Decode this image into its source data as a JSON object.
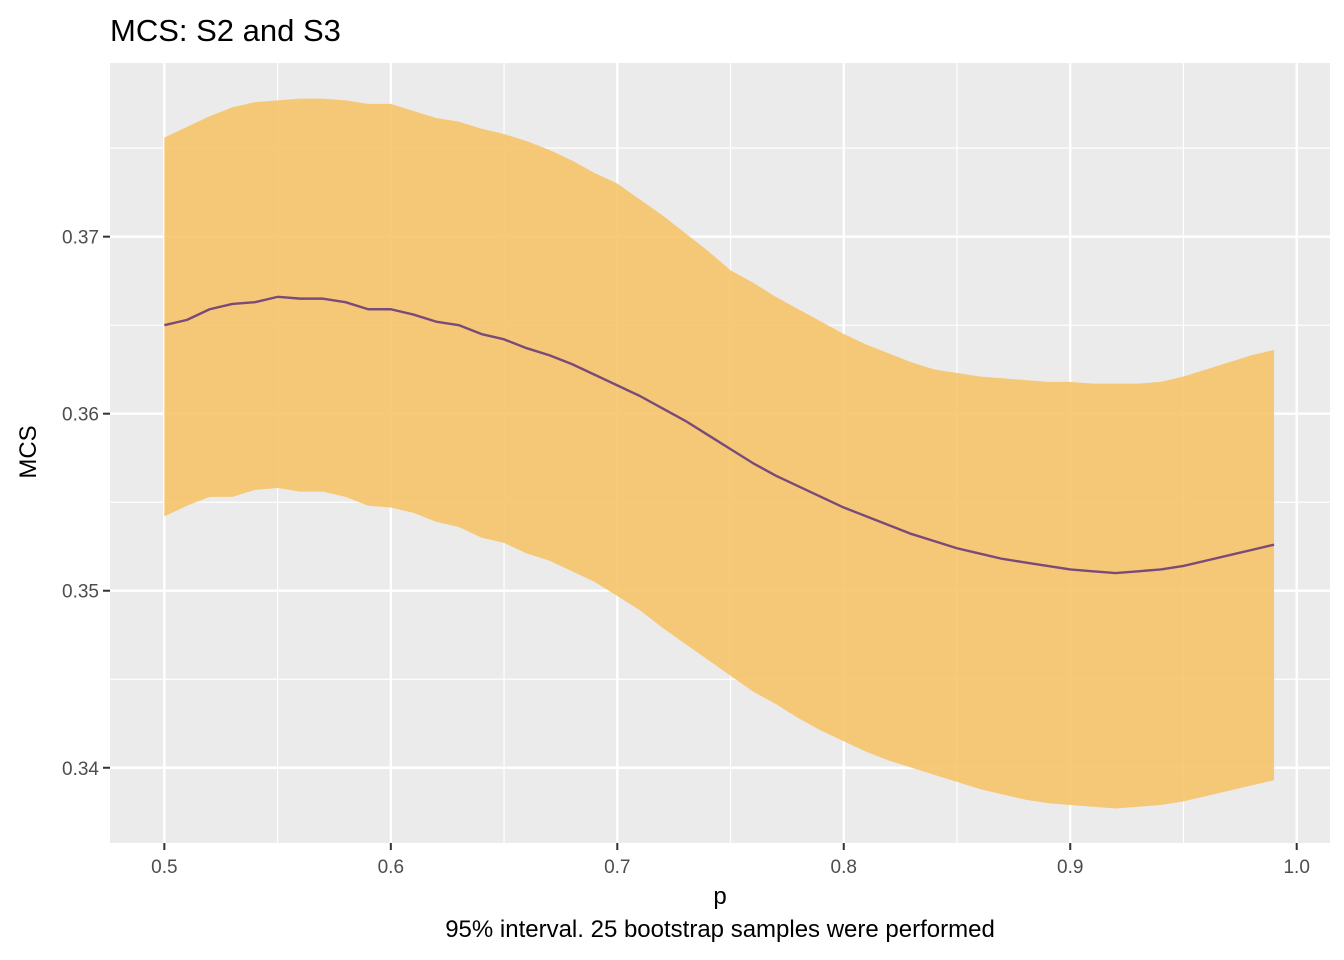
{
  "chart_data": {
    "type": "line",
    "title": "MCS: S2 and S3",
    "xlabel": "p",
    "ylabel": "MCS",
    "caption": "95% interval. 25 bootstrap samples were performed",
    "xlim": [
      0.476,
      1.0147
    ],
    "ylim": [
      0.33575,
      0.37981
    ],
    "x_ticks": [
      0.5,
      0.6,
      0.7,
      0.8,
      0.9,
      1.0
    ],
    "x_tick_labels": [
      "0.5",
      "0.6",
      "0.7",
      "0.8",
      "0.9",
      "1.0"
    ],
    "y_ticks": [
      0.34,
      0.35,
      0.36,
      0.37
    ],
    "y_tick_labels": [
      "0.34",
      "0.35",
      "0.36",
      "0.37"
    ],
    "grid": true,
    "legend": "none",
    "colors": {
      "panel": "#ebebeb",
      "grid": "#ffffff",
      "ribbon": "#f6c46a",
      "line": "#7a4a78"
    },
    "x": [
      0.5,
      0.51,
      0.52,
      0.53,
      0.54,
      0.55,
      0.56,
      0.57,
      0.58,
      0.59,
      0.6,
      0.61,
      0.62,
      0.63,
      0.64,
      0.65,
      0.66,
      0.67,
      0.68,
      0.69,
      0.7,
      0.71,
      0.72,
      0.73,
      0.74,
      0.75,
      0.76,
      0.77,
      0.78,
      0.79,
      0.8,
      0.81,
      0.82,
      0.83,
      0.84,
      0.85,
      0.86,
      0.87,
      0.88,
      0.89,
      0.9,
      0.91,
      0.92,
      0.93,
      0.94,
      0.95,
      0.96,
      0.97,
      0.98,
      0.99
    ],
    "series": [
      {
        "values": [
          0.365,
          0.3653,
          0.3659,
          0.3662,
          0.3663,
          0.3666,
          0.3665,
          0.3665,
          0.3663,
          0.3659,
          0.3659,
          0.3656,
          0.3652,
          0.365,
          0.3645,
          0.3642,
          0.3637,
          0.3633,
          0.3628,
          0.3622,
          0.3616,
          0.361,
          0.3603,
          0.3596,
          0.3588,
          0.358,
          0.3572,
          0.3565,
          0.3559,
          0.3553,
          0.3547,
          0.3542,
          0.3537,
          0.3532,
          0.3528,
          0.3524,
          0.3521,
          0.3518,
          0.3516,
          0.3514,
          0.3512,
          0.3511,
          0.351,
          0.3511,
          0.3512,
          0.3514,
          0.3517,
          0.352,
          0.3523,
          0.3526
        ],
        "lower": [
          0.3542,
          0.3548,
          0.3553,
          0.3553,
          0.3557,
          0.3558,
          0.3556,
          0.3556,
          0.3553,
          0.3548,
          0.3547,
          0.3544,
          0.3539,
          0.3536,
          0.353,
          0.3527,
          0.3521,
          0.3517,
          0.3511,
          0.3505,
          0.3497,
          0.3489,
          0.3479,
          0.347,
          0.3461,
          0.3452,
          0.3443,
          0.3436,
          0.3428,
          0.3421,
          0.3415,
          0.3409,
          0.3404,
          0.34,
          0.3396,
          0.3392,
          0.3388,
          0.3385,
          0.3382,
          0.338,
          0.3379,
          0.3378,
          0.3377,
          0.3378,
          0.3379,
          0.3381,
          0.3384,
          0.3387,
          0.339,
          0.3393
        ],
        "upper": [
          0.3756,
          0.3762,
          0.3768,
          0.3773,
          0.3776,
          0.3777,
          0.3778,
          0.3778,
          0.3777,
          0.3775,
          0.3775,
          0.3771,
          0.3767,
          0.3765,
          0.3761,
          0.3758,
          0.3754,
          0.3749,
          0.3743,
          0.3736,
          0.373,
          0.3721,
          0.3712,
          0.3702,
          0.3692,
          0.3681,
          0.3674,
          0.3666,
          0.3659,
          0.3652,
          0.3645,
          0.3639,
          0.3634,
          0.3629,
          0.3625,
          0.3623,
          0.3621,
          0.362,
          0.3619,
          0.3618,
          0.3618,
          0.3617,
          0.3617,
          0.3617,
          0.3618,
          0.3621,
          0.3625,
          0.3629,
          0.3633,
          0.3636
        ]
      }
    ]
  }
}
